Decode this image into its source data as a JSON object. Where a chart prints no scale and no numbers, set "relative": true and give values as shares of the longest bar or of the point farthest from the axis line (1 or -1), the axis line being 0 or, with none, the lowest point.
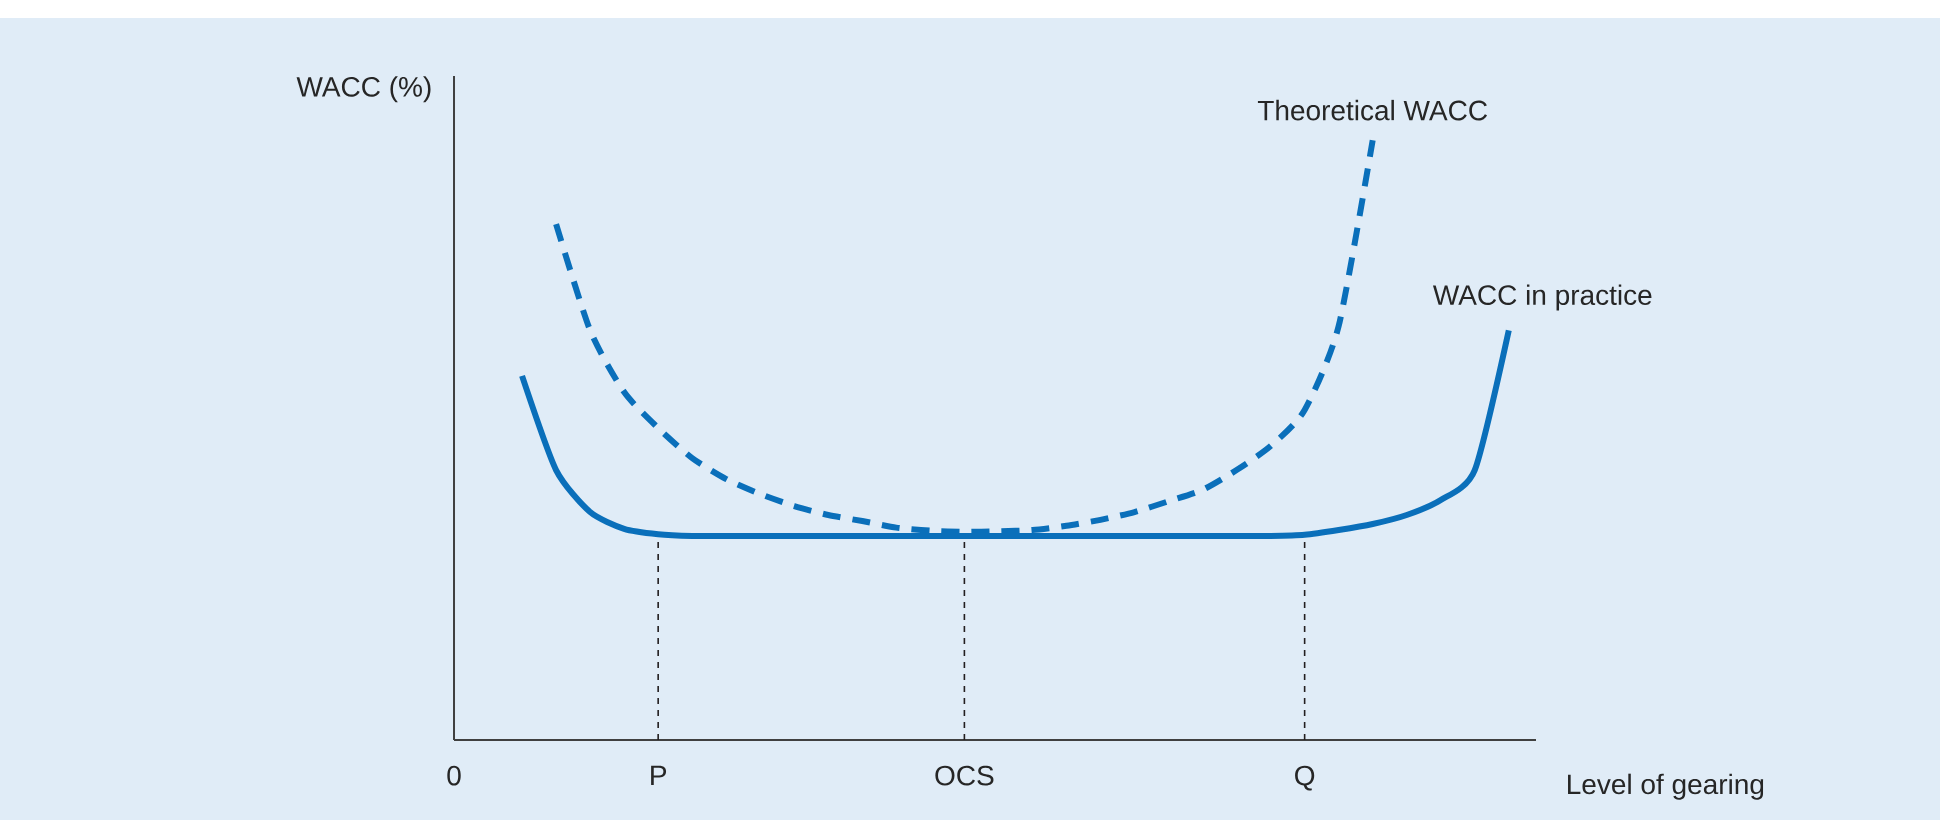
{
  "chart_data": {
    "type": "line",
    "relative": true,
    "ylabel": "WACC (%)",
    "xlabel": "Level of gearing",
    "categories": [
      "0",
      null,
      null,
      null,
      null,
      null,
      "P",
      null,
      null,
      null,
      null,
      null,
      null,
      null,
      null,
      "OCS",
      null,
      null,
      null,
      null,
      null,
      null,
      null,
      null,
      null,
      "Q",
      null,
      null,
      null,
      null,
      null,
      null
    ],
    "grid": false,
    "legend": false,
    "series": [
      {
        "name": "Theoretical WACC",
        "color": "#0a6fba",
        "line_style": "dashed",
        "values": [
          null,
          null,
          null,
          0.86,
          0.683,
          0.58,
          0.52,
          0.47,
          0.435,
          0.41,
          0.39,
          0.375,
          0.365,
          0.354,
          0.349,
          0.347,
          0.348,
          0.35,
          0.357,
          0.367,
          0.38,
          0.398,
          0.417,
          0.45,
          0.49,
          0.55,
          0.69,
          1.0,
          null,
          null,
          null,
          null
        ]
      },
      {
        "name": "WACC in practice",
        "color": "#0a6fba",
        "line_style": "solid",
        "values": [
          null,
          null,
          0.607,
          0.45,
          0.38,
          0.352,
          0.343,
          0.34,
          0.34,
          0.34,
          0.34,
          0.34,
          0.34,
          0.34,
          0.34,
          0.34,
          0.34,
          0.34,
          0.34,
          0.34,
          0.34,
          0.34,
          0.34,
          0.34,
          0.34,
          0.342,
          0.35,
          0.36,
          0.375,
          0.4,
          0.45,
          0.683
        ]
      }
    ],
    "ref_lines": [
      {
        "axis": "x",
        "value": "P",
        "color": "#231f20",
        "line_style": "dashed"
      },
      {
        "axis": "x",
        "value": "OCS",
        "color": "#231f20",
        "line_style": "dashed"
      },
      {
        "axis": "x",
        "value": "Q",
        "color": "#231f20",
        "line_style": "dashed"
      }
    ]
  }
}
